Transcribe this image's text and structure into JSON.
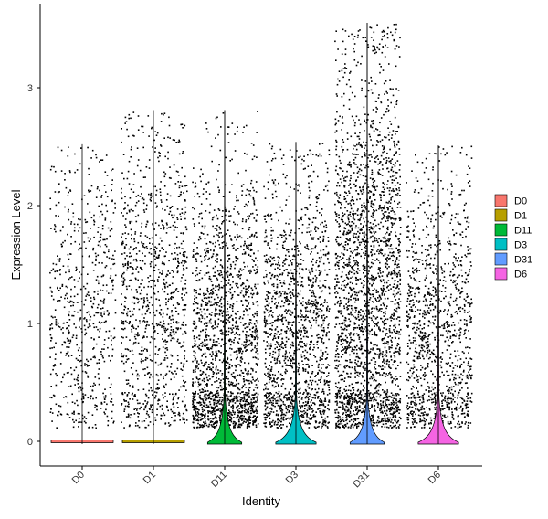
{
  "chart_data": {
    "type": "violin",
    "xlabel": "Identity",
    "ylabel": "Expression Level",
    "ylim": [
      -0.2,
      3.6
    ],
    "yticks": [
      0,
      1,
      2,
      3
    ],
    "categories": [
      "D0",
      "D1",
      "D11",
      "D3",
      "D31",
      "D6"
    ],
    "colors": [
      "#F8766D",
      "#B79F00",
      "#00BA38",
      "#00BFC4",
      "#619CFF",
      "#F564E3"
    ],
    "point_color": "#000000",
    "series": [
      {
        "name": "D0",
        "max": 2.52,
        "mean_nonzero": 1.1,
        "nonzero_fraction": 0.1,
        "zero_density": 1.0
      },
      {
        "name": "D1",
        "max": 2.81,
        "mean_nonzero": 1.2,
        "nonzero_fraction": 0.25,
        "zero_density": 1.0
      },
      {
        "name": "D11",
        "max": 2.81,
        "mean_nonzero": 0.75,
        "nonzero_fraction": 0.55,
        "zero_density": 0.55
      },
      {
        "name": "D3",
        "max": 2.54,
        "mean_nonzero": 0.85,
        "nonzero_fraction": 0.45,
        "zero_density": 0.65
      },
      {
        "name": "D31",
        "max": 3.55,
        "mean_nonzero": 1.25,
        "nonzero_fraction": 0.8,
        "zero_density": 0.55
      },
      {
        "name": "D6",
        "max": 2.51,
        "mean_nonzero": 0.9,
        "nonzero_fraction": 0.3,
        "zero_density": 0.65
      }
    ],
    "legend": {
      "position": "right",
      "entries": [
        "D0",
        "D1",
        "D11",
        "D3",
        "D31",
        "D6"
      ]
    },
    "grid": false
  }
}
